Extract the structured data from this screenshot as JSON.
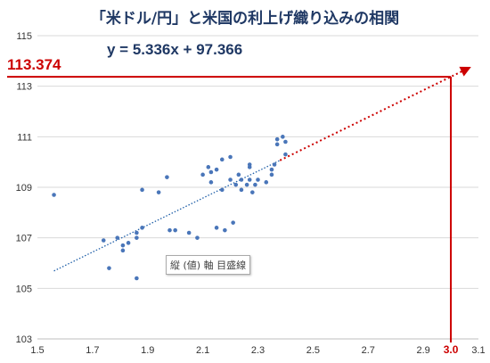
{
  "title": "「米ドル/円」と米国の利上げ織り込みの相関",
  "equation": "y = 5.336x + 97.366",
  "highlight_y_label": "113.374",
  "tooltip": "縦 (値) 軸 目盛線",
  "colors": {
    "points": "#4a76b9",
    "trend": "#1f5fa8",
    "highlight": "#cc0000",
    "title": "#1f3864",
    "grid": "#d9d9d9"
  },
  "chart_data": {
    "type": "scatter",
    "title": "「米ドル/円」と米国の利上げ織り込みの相関",
    "xlabel": "",
    "ylabel": "",
    "xlim": [
      1.5,
      3.1
    ],
    "ylim": [
      103,
      115
    ],
    "x_ticks": [
      "1.5",
      "1.7",
      "1.9",
      "2.1",
      "2.3",
      "2.5",
      "2.7",
      "2.9",
      "3.1"
    ],
    "y_ticks": [
      "103",
      "105",
      "107",
      "109",
      "111",
      "113",
      "115"
    ],
    "highlight_x_label": "3.0",
    "grid": "horizontal",
    "trendline": {
      "slope": 5.336,
      "intercept": 97.366,
      "x_start": 1.56,
      "x_end": 2.38,
      "extend_to_x": 3.07
    },
    "highlight": {
      "x": 3.0,
      "y": 113.374
    },
    "points": [
      {
        "x": 1.56,
        "y": 108.7
      },
      {
        "x": 1.74,
        "y": 106.9
      },
      {
        "x": 1.76,
        "y": 105.8
      },
      {
        "x": 1.79,
        "y": 107.0
      },
      {
        "x": 1.81,
        "y": 106.7
      },
      {
        "x": 1.81,
        "y": 106.5
      },
      {
        "x": 1.83,
        "y": 106.8
      },
      {
        "x": 1.86,
        "y": 105.4
      },
      {
        "x": 1.86,
        "y": 107.0
      },
      {
        "x": 1.86,
        "y": 107.2
      },
      {
        "x": 1.88,
        "y": 108.9
      },
      {
        "x": 1.88,
        "y": 107.4
      },
      {
        "x": 1.94,
        "y": 108.8
      },
      {
        "x": 1.97,
        "y": 109.4
      },
      {
        "x": 1.98,
        "y": 107.3
      },
      {
        "x": 2.0,
        "y": 107.3
      },
      {
        "x": 2.05,
        "y": 107.2
      },
      {
        "x": 2.08,
        "y": 107.0
      },
      {
        "x": 2.1,
        "y": 109.5
      },
      {
        "x": 2.12,
        "y": 109.8
      },
      {
        "x": 2.13,
        "y": 109.6
      },
      {
        "x": 2.13,
        "y": 109.2
      },
      {
        "x": 2.15,
        "y": 109.7
      },
      {
        "x": 2.15,
        "y": 107.4
      },
      {
        "x": 2.17,
        "y": 108.9
      },
      {
        "x": 2.17,
        "y": 110.1
      },
      {
        "x": 2.18,
        "y": 107.3
      },
      {
        "x": 2.2,
        "y": 110.2
      },
      {
        "x": 2.2,
        "y": 109.3
      },
      {
        "x": 2.21,
        "y": 107.6
      },
      {
        "x": 2.22,
        "y": 109.1
      },
      {
        "x": 2.23,
        "y": 109.5
      },
      {
        "x": 2.24,
        "y": 108.9
      },
      {
        "x": 2.24,
        "y": 109.3
      },
      {
        "x": 2.26,
        "y": 109.1
      },
      {
        "x": 2.27,
        "y": 109.9
      },
      {
        "x": 2.27,
        "y": 109.8
      },
      {
        "x": 2.27,
        "y": 109.3
      },
      {
        "x": 2.28,
        "y": 108.8
      },
      {
        "x": 2.29,
        "y": 109.1
      },
      {
        "x": 2.3,
        "y": 109.3
      },
      {
        "x": 2.33,
        "y": 109.2
      },
      {
        "x": 2.35,
        "y": 109.7
      },
      {
        "x": 2.35,
        "y": 109.5
      },
      {
        "x": 2.36,
        "y": 109.9
      },
      {
        "x": 2.37,
        "y": 110.7
      },
      {
        "x": 2.37,
        "y": 110.9
      },
      {
        "x": 2.39,
        "y": 111.0
      },
      {
        "x": 2.4,
        "y": 110.8
      },
      {
        "x": 2.4,
        "y": 110.3
      }
    ]
  }
}
